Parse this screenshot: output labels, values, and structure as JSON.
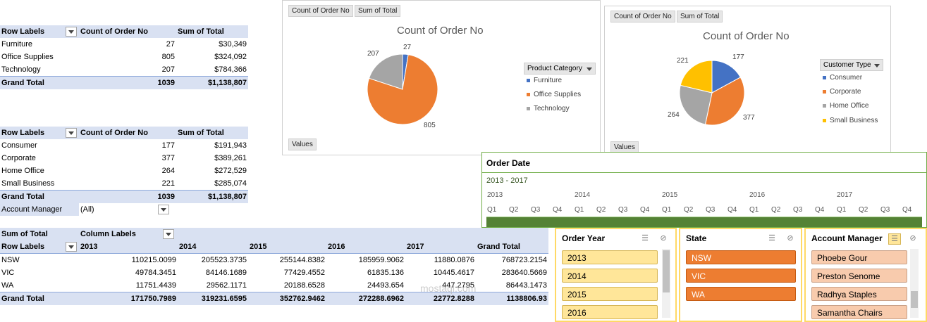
{
  "table1": {
    "headers": [
      "Row Labels",
      "Count of Order No",
      "Sum of Total"
    ],
    "rows": [
      {
        "label": "Furniture",
        "count": "27",
        "sum": "$30,349"
      },
      {
        "label": "Office Supplies",
        "count": "805",
        "sum": "$324,092"
      },
      {
        "label": "Technology",
        "count": "207",
        "sum": "$784,366"
      }
    ],
    "total": {
      "label": "Grand Total",
      "count": "1039",
      "sum": "$1,138,807"
    }
  },
  "table2": {
    "headers": [
      "Row Labels",
      "Count of Order No",
      "Sum of Total"
    ],
    "rows": [
      {
        "label": "Consumer",
        "count": "177",
        "sum": "$191,943"
      },
      {
        "label": "Corporate",
        "count": "377",
        "sum": "$389,261"
      },
      {
        "label": "Home Office",
        "count": "264",
        "sum": "$272,529"
      },
      {
        "label": "Small Business",
        "count": "221",
        "sum": "$285,074"
      }
    ],
    "total": {
      "label": "Grand Total",
      "count": "1039",
      "sum": "$1,138,807"
    },
    "filter_label": "Account Manager",
    "filter_value": "(All)"
  },
  "table3": {
    "corner": "Sum of Total",
    "column_labels": "Column Labels",
    "row_labels": "Row Labels",
    "years": [
      "2013",
      "2014",
      "2015",
      "2016",
      "2017",
      "Grand Total"
    ],
    "rows": [
      {
        "label": "NSW",
        "values": [
          "110215.0099",
          "205523.3735",
          "255144.8382",
          "185959.9062",
          "11880.0876",
          "768723.2154"
        ]
      },
      {
        "label": "VIC",
        "values": [
          "49784.3451",
          "84146.1689",
          "77429.4552",
          "61835.136",
          "10445.4617",
          "283640.5669"
        ]
      },
      {
        "label": "WA",
        "values": [
          "11751.4439",
          "29562.1171",
          "20188.6528",
          "24493.654",
          "447.2795",
          "86443.1473"
        ]
      }
    ],
    "total": {
      "label": "Grand Total",
      "values": [
        "171750.7989",
        "319231.6595",
        "352762.9462",
        "272288.6962",
        "22772.8288",
        "1138806.93"
      ]
    }
  },
  "chart1": {
    "field_buttons": [
      "Count of Order No",
      "Sum of Total"
    ],
    "values_button": "Values",
    "legend_header": "Product Category",
    "colors": [
      "#4472c4",
      "#ed7d31",
      "#a5a5a5"
    ]
  },
  "chart2": {
    "field_buttons": [
      "Count of Order No",
      "Sum of Total"
    ],
    "values_button": "Values",
    "legend_header": "Customer Type",
    "colors": [
      "#4472c4",
      "#ed7d31",
      "#a5a5a5",
      "#ffc000"
    ]
  },
  "chart_data": [
    {
      "type": "pie",
      "title": "Count of Order No",
      "categories": [
        "Furniture",
        "Office Supplies",
        "Technology"
      ],
      "values": [
        27,
        805,
        207
      ],
      "legend": "right"
    },
    {
      "type": "pie",
      "title": "Count of Order No",
      "categories": [
        "Consumer",
        "Corporate",
        "Home Office",
        "Small Business"
      ],
      "values": [
        177,
        377,
        264,
        221
      ],
      "legend": "right"
    }
  ],
  "timeline": {
    "title": "Order Date",
    "range": "2013 - 2017",
    "years": [
      "2013",
      "2014",
      "2015",
      "2016",
      "2017"
    ],
    "quarters": [
      "Q1",
      "Q2",
      "Q3",
      "Q4"
    ]
  },
  "slicers": {
    "order_year": {
      "title": "Order Year",
      "items": [
        "2013",
        "2014",
        "2015",
        "2016"
      ]
    },
    "state": {
      "title": "State",
      "items": [
        "NSW",
        "VIC",
        "WA"
      ]
    },
    "account_manager": {
      "title": "Account Manager",
      "items": [
        "Phoebe Gour",
        "Preston Senome",
        "Radhya Staples",
        "Samantha Chairs"
      ]
    }
  },
  "watermark": "mostaql.com"
}
